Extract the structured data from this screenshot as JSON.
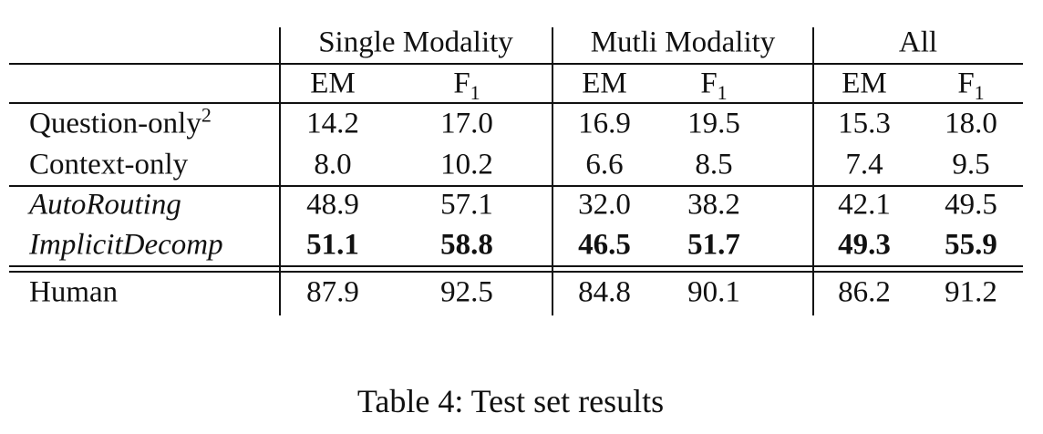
{
  "table": {
    "groups": [
      "Single Modality",
      "Mutli Modality",
      "All"
    ],
    "columns": [
      {
        "text": "EM"
      },
      {
        "text": "F",
        "sub": "1"
      },
      {
        "text": "EM"
      },
      {
        "text": "F",
        "sub": "1"
      },
      {
        "text": "EM"
      },
      {
        "text": "F",
        "sub": "1"
      }
    ],
    "row_groups": [
      [
        {
          "label": {
            "text": "Question-only",
            "sup": "2"
          },
          "cells": [
            "14.2",
            "17.0",
            "16.9",
            "19.5",
            "15.3",
            "18.0"
          ]
        },
        {
          "label": {
            "text": "Context-only"
          },
          "cells": [
            "8.0",
            "10.2",
            "6.6",
            "8.5",
            "7.4",
            "9.5"
          ]
        }
      ],
      [
        {
          "label": {
            "text": "AutoRouting",
            "italic": true
          },
          "cells": [
            "48.9",
            "57.1",
            "32.0",
            "38.2",
            "42.1",
            "49.5"
          ]
        },
        {
          "label": {
            "text": "ImplicitDecomp",
            "italic": true
          },
          "cells": [
            "51.1",
            "58.8",
            "46.5",
            "51.7",
            "49.3",
            "55.9"
          ],
          "bold": true
        }
      ],
      [
        {
          "label": {
            "text": "Human"
          },
          "cells": [
            "87.9",
            "92.5",
            "84.8",
            "90.1",
            "86.2",
            "91.2"
          ]
        }
      ]
    ]
  },
  "caption": "Table 4: Test set results"
}
